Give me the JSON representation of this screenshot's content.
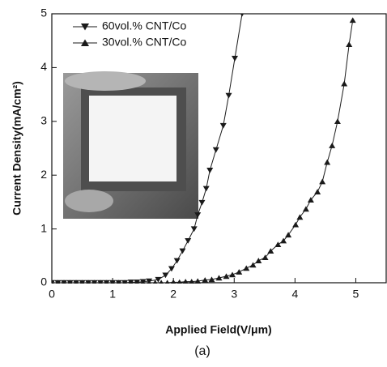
{
  "chart_data": {
    "type": "line",
    "x_label": "Applied Field(V/μm)",
    "y_label": "Current Density(mA/cm²)",
    "caption": "(a)",
    "xlim": [
      0,
      5.5
    ],
    "xticks": [
      0,
      1,
      2,
      3,
      4,
      5
    ],
    "ylim": [
      0,
      5
    ],
    "yticks": [
      0,
      1,
      2,
      3,
      4,
      5
    ],
    "legend": "upper left",
    "series": [
      {
        "name": "60vol.% CNT/Co",
        "color": "#1a1a1a",
        "marker": "triangle-down",
        "x": [
          0,
          0.1,
          0.2,
          0.3,
          0.4,
          0.5,
          0.6,
          0.7,
          0.8,
          0.9,
          1.0,
          1.1,
          1.2,
          1.3,
          1.4,
          1.5,
          1.6,
          1.75,
          1.87,
          1.97,
          2.06,
          2.15,
          2.24,
          2.34,
          2.4,
          2.47,
          2.54,
          2.6,
          2.7,
          2.82,
          2.91,
          3.01,
          3.13
        ],
        "values": [
          0,
          0,
          0,
          0,
          0,
          0,
          0,
          0,
          0,
          0,
          0,
          0,
          0,
          0.01,
          0.01,
          0.02,
          0.03,
          0.06,
          0.14,
          0.26,
          0.41,
          0.59,
          0.78,
          1.0,
          1.26,
          1.49,
          1.75,
          2.09,
          2.47,
          2.92,
          3.48,
          4.17,
          5
        ]
      },
      {
        "name": "30vol.% CNT/Co",
        "color": "#1a1a1a",
        "marker": "triangle-up",
        "x": [
          0,
          0.1,
          0.2,
          0.3,
          0.4,
          0.5,
          0.6,
          0.7,
          0.8,
          0.9,
          1.0,
          1.1,
          1.2,
          1.3,
          1.4,
          1.5,
          1.6,
          1.7,
          1.8,
          1.9,
          2.0,
          2.1,
          2.2,
          2.3,
          2.4,
          2.52,
          2.63,
          2.75,
          2.87,
          2.97,
          3.08,
          3.2,
          3.31,
          3.4,
          3.51,
          3.6,
          3.72,
          3.81,
          3.89,
          4.01,
          4.08,
          4.18,
          4.26,
          4.37,
          4.45,
          4.53,
          4.61,
          4.7,
          4.81,
          4.89,
          4.95
        ],
        "values": [
          0,
          0,
          0,
          0,
          0,
          0,
          0,
          0,
          0,
          0,
          0,
          0,
          0,
          0,
          0,
          0,
          0,
          0,
          0,
          0,
          0.01,
          0.01,
          0.02,
          0.02,
          0.03,
          0.05,
          0.06,
          0.09,
          0.12,
          0.15,
          0.2,
          0.27,
          0.33,
          0.41,
          0.47,
          0.59,
          0.71,
          0.78,
          0.89,
          1.08,
          1.22,
          1.37,
          1.54,
          1.69,
          1.88,
          2.24,
          2.55,
          3.0,
          3.7,
          4.43,
          4.88
        ]
      }
    ]
  }
}
